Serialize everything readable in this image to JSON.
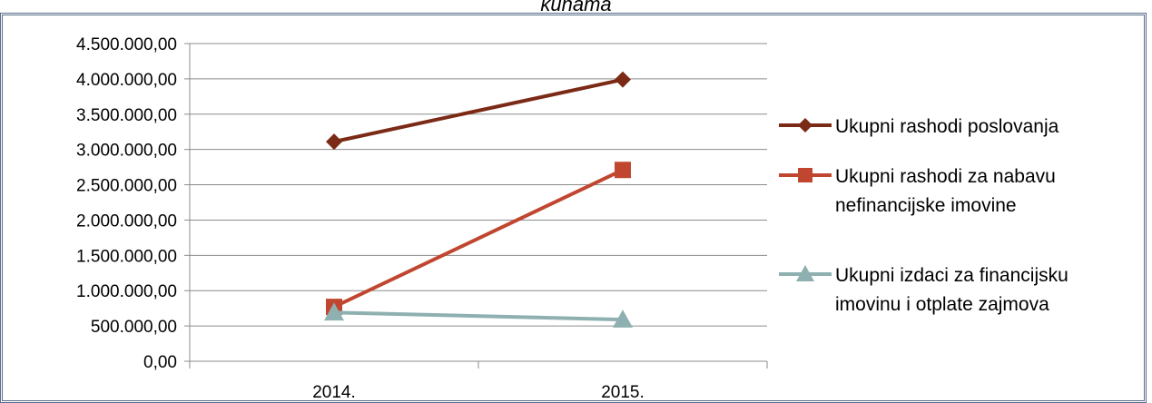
{
  "chart_data": {
    "type": "line",
    "title": "kunama",
    "categories": [
      "2014.",
      "2015."
    ],
    "y_ticks": [
      "0,00",
      "500.000,00",
      "1.000.000,00",
      "1.500.000,00",
      "2.000.000,00",
      "2.500.000,00",
      "3.000.000,00",
      "3.500.000,00",
      "4.000.000,00",
      "4.500.000,00"
    ],
    "ylim": [
      0,
      4500000
    ],
    "grid": true,
    "legend_position": "right",
    "series": [
      {
        "name": "Ukupni rashodi poslovanja",
        "name_lines": [
          "Ukupni rashodi poslovanja"
        ],
        "values": [
          3110000,
          3990000
        ],
        "color": "#7b2a16",
        "marker": "diamond"
      },
      {
        "name": "Ukupni rashodi za nabavu nefinancijske imovine",
        "name_lines": [
          "Ukupni rashodi za nabavu",
          "nefinancijske imovine"
        ],
        "values": [
          770000,
          2710000
        ],
        "color": "#c0462f",
        "marker": "square"
      },
      {
        "name": "Ukupni izdaci za financijsku imovinu i otplate zajmova",
        "name_lines": [
          "Ukupni izdaci za financijsku",
          "imovinu i otplate zajmova"
        ],
        "values": [
          690000,
          590000
        ],
        "color": "#8fb0b0",
        "marker": "triangle"
      }
    ]
  }
}
